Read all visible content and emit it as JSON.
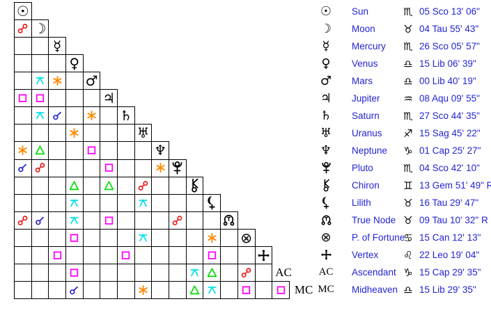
{
  "points": [
    {
      "id": "sun",
      "name": "Sun",
      "glyph": "☉",
      "sign_glyph": "♏",
      "position": "05 Sco 13' 06\""
    },
    {
      "id": "moon",
      "name": "Moon",
      "glyph": "☽",
      "sign_glyph": "♉",
      "position": "04 Tau 55' 43\""
    },
    {
      "id": "mercury",
      "name": "Mercury",
      "glyph": "☿",
      "sign_glyph": "♏",
      "position": "26 Sco 05' 57\""
    },
    {
      "id": "venus",
      "name": "Venus",
      "glyph": "♀",
      "sign_glyph": "♎",
      "position": "15 Lib 06' 39\""
    },
    {
      "id": "mars",
      "name": "Mars",
      "glyph": "♂",
      "sign_glyph": "♎",
      "position": "00 Lib 40' 19\""
    },
    {
      "id": "jupiter",
      "name": "Jupiter",
      "glyph": "♃",
      "sign_glyph": "♒",
      "position": "08 Aqu 09' 55\""
    },
    {
      "id": "saturn",
      "name": "Saturn",
      "glyph": "♄",
      "sign_glyph": "♏",
      "position": "27 Sco 44' 35\""
    },
    {
      "id": "uranus",
      "name": "Uranus",
      "glyph": "♅",
      "sign_glyph": "♐",
      "position": "15 Sag 45' 22\""
    },
    {
      "id": "neptune",
      "name": "Neptune",
      "glyph": "♆",
      "sign_glyph": "♑",
      "position": "01 Cap 25' 27\""
    },
    {
      "id": "pluto",
      "name": "Pluto",
      "glyph": "svg",
      "sign_glyph": "♏",
      "position": "04 Sco 42' 10\""
    },
    {
      "id": "chiron",
      "name": "Chiron",
      "glyph": "svg",
      "sign_glyph": "♊",
      "position": "13 Gem 51' 49\" R"
    },
    {
      "id": "lilith",
      "name": "Lilith",
      "glyph": "svg",
      "sign_glyph": "♉",
      "position": "16 Tau 29' 47\""
    },
    {
      "id": "true-node",
      "name": "True Node",
      "glyph": "svg",
      "sign_glyph": "♉",
      "position": "09 Tau 10' 32\" R"
    },
    {
      "id": "fortune",
      "name": "P. of Fortune",
      "glyph": "⊗",
      "sign_glyph": "♋",
      "position": "15 Can 12' 13\""
    },
    {
      "id": "vertex",
      "name": "Vertex",
      "glyph": "svg",
      "sign_glyph": "♌",
      "position": "22 Leo 19' 04\""
    },
    {
      "id": "ascendant",
      "name": "Ascendant",
      "glyph": "AC",
      "sign_glyph": "♑",
      "position": "15 Cap 29' 35\""
    },
    {
      "id": "midheaven",
      "name": "Midheaven",
      "glyph": "MC",
      "sign_glyph": "♎",
      "position": "15 Lib 29' 35\""
    }
  ],
  "grid": {
    "aspect_colors": {
      "conjunction": "#2020cc",
      "opposition": "#ee0e0e",
      "square": "#ff00ff",
      "trine": "#00dd00",
      "sextile": "#ff8800",
      "quincunx": "#00e0e8"
    },
    "aspects": [
      {
        "row": 2,
        "col": 1,
        "type": "opposition"
      },
      {
        "row": 5,
        "col": 2,
        "type": "quincunx"
      },
      {
        "row": 5,
        "col": 3,
        "type": "sextile"
      },
      {
        "row": 6,
        "col": 1,
        "type": "square"
      },
      {
        "row": 6,
        "col": 2,
        "type": "square"
      },
      {
        "row": 7,
        "col": 2,
        "type": "quincunx"
      },
      {
        "row": 7,
        "col": 3,
        "type": "conjunction"
      },
      {
        "row": 7,
        "col": 5,
        "type": "sextile"
      },
      {
        "row": 8,
        "col": 4,
        "type": "sextile"
      },
      {
        "row": 9,
        "col": 1,
        "type": "sextile"
      },
      {
        "row": 9,
        "col": 2,
        "type": "trine"
      },
      {
        "row": 9,
        "col": 5,
        "type": "square"
      },
      {
        "row": 10,
        "col": 1,
        "type": "conjunction"
      },
      {
        "row": 10,
        "col": 2,
        "type": "opposition"
      },
      {
        "row": 10,
        "col": 6,
        "type": "square"
      },
      {
        "row": 10,
        "col": 9,
        "type": "sextile"
      },
      {
        "row": 11,
        "col": 4,
        "type": "trine"
      },
      {
        "row": 11,
        "col": 6,
        "type": "trine"
      },
      {
        "row": 11,
        "col": 8,
        "type": "opposition"
      },
      {
        "row": 12,
        "col": 4,
        "type": "quincunx"
      },
      {
        "row": 12,
        "col": 8,
        "type": "quincunx"
      },
      {
        "row": 13,
        "col": 1,
        "type": "opposition"
      },
      {
        "row": 13,
        "col": 2,
        "type": "conjunction"
      },
      {
        "row": 13,
        "col": 4,
        "type": "quincunx"
      },
      {
        "row": 13,
        "col": 6,
        "type": "square"
      },
      {
        "row": 13,
        "col": 10,
        "type": "opposition"
      },
      {
        "row": 14,
        "col": 4,
        "type": "square"
      },
      {
        "row": 14,
        "col": 8,
        "type": "quincunx"
      },
      {
        "row": 14,
        "col": 12,
        "type": "sextile"
      },
      {
        "row": 15,
        "col": 3,
        "type": "square"
      },
      {
        "row": 15,
        "col": 7,
        "type": "square"
      },
      {
        "row": 15,
        "col": 12,
        "type": "square"
      },
      {
        "row": 16,
        "col": 4,
        "type": "square"
      },
      {
        "row": 16,
        "col": 11,
        "type": "quincunx"
      },
      {
        "row": 16,
        "col": 12,
        "type": "trine"
      },
      {
        "row": 16,
        "col": 14,
        "type": "opposition"
      },
      {
        "row": 17,
        "col": 4,
        "type": "conjunction"
      },
      {
        "row": 17,
        "col": 8,
        "type": "sextile"
      },
      {
        "row": 17,
        "col": 11,
        "type": "trine"
      },
      {
        "row": 17,
        "col": 12,
        "type": "quincunx"
      },
      {
        "row": 17,
        "col": 14,
        "type": "square"
      },
      {
        "row": 17,
        "col": 16,
        "type": "square"
      }
    ]
  }
}
